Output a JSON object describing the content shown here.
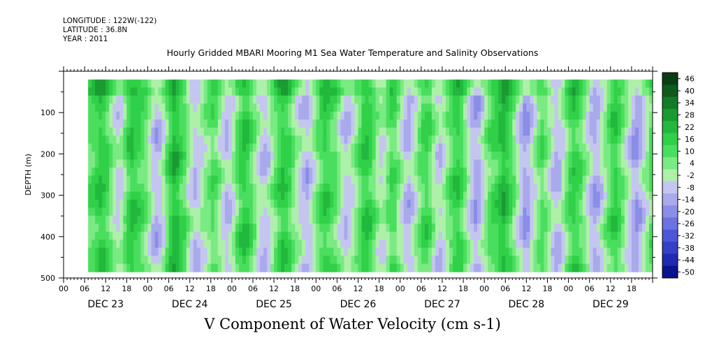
{
  "header": {
    "longitude": "LONGITUDE : 122W(-122)",
    "latitude": "LATITUDE : 36.8N",
    "year": "YEAR : 2011",
    "title": "Hourly Gridded MBARI Mooring M1 Sea Water Temperature and Salinity Observations"
  },
  "chart_data": {
    "type": "heatmap",
    "title": "Hourly Gridded MBARI Mooring M1 Sea Water Temperature and Salinity Observations",
    "xlabel": "V Component of Water Velocity (cm s-1)",
    "ylabel": "DEPTH (m)",
    "ylim": [
      500,
      0
    ],
    "y_ticks": [
      100,
      200,
      300,
      400,
      500
    ],
    "x_hour_labels": [
      "00",
      "06",
      "12",
      "18",
      "00",
      "06",
      "12",
      "18",
      "00",
      "06",
      "12",
      "18",
      "00",
      "06",
      "12",
      "18",
      "00",
      "06",
      "12",
      "18",
      "00",
      "06",
      "12",
      "18",
      "00",
      "06",
      "12",
      "18"
    ],
    "x_day_labels": [
      "DEC 23",
      "DEC 24",
      "DEC 25",
      "DEC 26",
      "DEC 27",
      "DEC 28",
      "DEC 29"
    ],
    "data_depth_range_m": [
      20,
      485
    ],
    "colorbar": {
      "labels": [
        "46",
        "40",
        "34",
        "28",
        "22",
        "16",
        "10",
        "4",
        "-2",
        "-8",
        "-14",
        "-20",
        "-26",
        "-32",
        "-38",
        "-44",
        "-50"
      ],
      "colors": [
        "#0a3d14",
        "#0d5a1c",
        "#137a26",
        "#1a9a32",
        "#22b83d",
        "#30d048",
        "#4ade5e",
        "#7aea82",
        "#aef0aa",
        "#c4c6f0",
        "#a8aaec",
        "#8a8ee6",
        "#6c72e0",
        "#4e56d8",
        "#3440c8",
        "#1f2ab2",
        "#0a128c"
      ]
    },
    "velocity_columns": {
      "x_start_hour": 7,
      "x_step_hours": 1,
      "mean_velocity_cm_s": [
        6,
        8,
        11,
        14,
        12,
        8,
        2,
        -4,
        -8,
        -6,
        2,
        10,
        14,
        12,
        9,
        6,
        2,
        -4,
        -10,
        -14,
        -12,
        -6,
        4,
        12,
        18,
        16,
        10,
        6,
        -2,
        -8,
        -12,
        -10,
        -6,
        -2,
        2,
        6,
        4,
        -2,
        -8,
        -12,
        -10,
        -4,
        4,
        10,
        14,
        12,
        6,
        0,
        -6,
        -10,
        -12,
        -8,
        -2,
        4,
        10,
        14,
        12,
        8,
        2,
        -4,
        -8,
        -12,
        -14,
        -10,
        -4,
        2,
        8,
        12,
        10,
        6,
        4,
        -2,
        -8,
        -12,
        -10,
        -6,
        0,
        6,
        12,
        14,
        10,
        4,
        -2,
        -6,
        -4,
        2,
        8,
        6,
        0,
        -6,
        -12,
        -14,
        -10,
        -4,
        2,
        8,
        10,
        6,
        -2,
        -8,
        -10,
        -6,
        0,
        6,
        10,
        12,
        8,
        2,
        -6,
        -12,
        -16,
        -14,
        -8,
        -2,
        4,
        8,
        10,
        14,
        18,
        14,
        8,
        2,
        -6,
        -12,
        -18,
        -16,
        -10,
        -4,
        2,
        6,
        2,
        -4,
        -10,
        -14,
        -12,
        -6,
        2,
        8,
        12,
        10,
        6,
        0,
        -6,
        -12,
        -16,
        -14,
        -8,
        -2,
        4,
        10,
        12,
        8,
        2,
        -4,
        -10,
        -16,
        -18,
        -14,
        -8,
        -2,
        4,
        8,
        10,
        6,
        0,
        -6,
        -10,
        -8,
        -2,
        4,
        10,
        14,
        12,
        6,
        0,
        -8,
        -14,
        -16,
        -12,
        -6,
        0,
        6,
        10,
        8,
        2,
        -4,
        -10,
        -12,
        -8,
        -2,
        4,
        10,
        14,
        10,
        4,
        -2,
        -8,
        -6,
        0,
        6,
        10,
        14
      ]
    }
  }
}
